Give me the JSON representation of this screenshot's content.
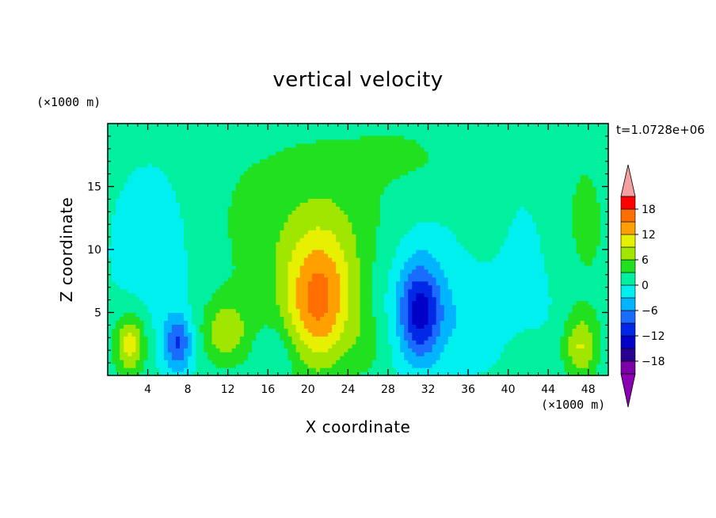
{
  "chart_data": {
    "type": "heatmap",
    "title": "vertical velocity",
    "xlabel": "X coordinate",
    "ylabel": "Z coordinate",
    "x_unit": "(×1000 m)",
    "z_unit": "(×1000 m)",
    "time_label": "t=1.0728e+06",
    "xlim": [
      0,
      50
    ],
    "ylim": [
      0,
      20
    ],
    "x_ticks": [
      4,
      8,
      12,
      16,
      20,
      24,
      28,
      32,
      36,
      40,
      44,
      48
    ],
    "y_ticks": [
      5,
      10,
      15
    ],
    "colorbar": {
      "range": [
        -21,
        21
      ],
      "step": 3,
      "tick_values": [
        18,
        12,
        6,
        0,
        -6,
        -12,
        -18
      ],
      "tick_labels": [
        "18",
        "12",
        "6",
        "0",
        "−6",
        "−12",
        "−18"
      ],
      "colors": [
        "#7a00a8",
        "#2a0090",
        "#0000c8",
        "#0028e6",
        "#1a6cff",
        "#00b4ff",
        "#00f0f0",
        "#00f0a0",
        "#20e020",
        "#a0e600",
        "#e6f000",
        "#ffd200",
        "#ffa000",
        "#ff6e00",
        "#ff3c00",
        "#ff0000"
      ],
      "over_color": "#f5a0a0",
      "under_color": "#8c00b4"
    },
    "features": [
      {
        "x": 2.2,
        "z": 2.5,
        "sx": 1.1,
        "sz": 1.7,
        "w": 10
      },
      {
        "x": 7.0,
        "z": 2.6,
        "sx": 1.0,
        "sz": 1.6,
        "w": -10
      },
      {
        "x": 11.8,
        "z": 3.5,
        "sx": 1.7,
        "sz": 1.8,
        "w": 7
      },
      {
        "x": 21.0,
        "z": 5.5,
        "sx": 2.3,
        "sz": 3.6,
        "w": 11
      },
      {
        "x": 21.5,
        "z": 8.5,
        "sx": 3.5,
        "sz": 4.5,
        "w": 4
      },
      {
        "x": 31.2,
        "z": 5.0,
        "sx": 1.4,
        "sz": 2.6,
        "w": -11
      },
      {
        "x": 31.0,
        "z": 7.0,
        "sx": 3.0,
        "sz": 4.0,
        "w": -3.5
      },
      {
        "x": 5.0,
        "z": 10.0,
        "sx": 3.2,
        "sz": 5.0,
        "w": -2.6
      },
      {
        "x": 14.5,
        "z": 12.0,
        "sx": 5.0,
        "sz": 6.0,
        "w": 2.5
      },
      {
        "x": 24.5,
        "z": 14.0,
        "sx": 5.0,
        "sz": 6.0,
        "w": 2.2
      },
      {
        "x": 37.5,
        "z": 4.0,
        "sx": 5.0,
        "sz": 2.5,
        "w": -2.5
      },
      {
        "x": 42.5,
        "z": 9.0,
        "sx": 2.5,
        "sz": 5.0,
        "w": -1.5
      },
      {
        "x": 47.5,
        "z": 12.0,
        "sx": 2.5,
        "sz": 6.0,
        "w": 2.8
      },
      {
        "x": 47.2,
        "z": 2.3,
        "sx": 1.2,
        "sz": 1.8,
        "w": 8
      },
      {
        "x": 17.0,
        "z": 2.0,
        "sx": 1.5,
        "sz": 1.5,
        "w": -2.5
      },
      {
        "x": 26.0,
        "z": 2.5,
        "sx": 1.5,
        "sz": 2.0,
        "w": 2.5
      },
      {
        "x": 41.5,
        "z": 2.5,
        "sx": 2.0,
        "sz": 2.0,
        "w": 2.0
      },
      {
        "x": 35.0,
        "z": 16.0,
        "sx": 1.5,
        "sz": 1.5,
        "w": 1.5
      },
      {
        "x": 30.0,
        "z": 17.5,
        "sx": 3.0,
        "sz": 1.5,
        "w": 2.0
      }
    ]
  }
}
